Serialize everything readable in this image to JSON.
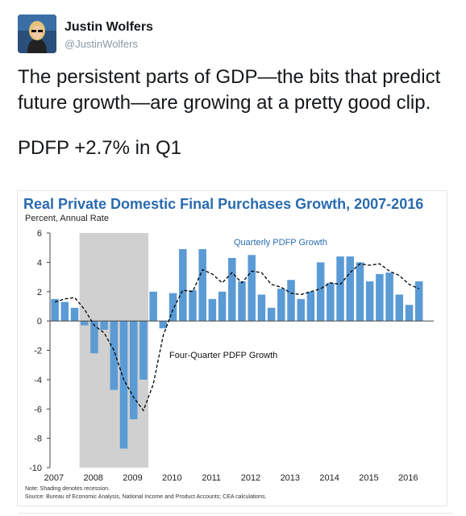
{
  "tweet": {
    "author_name": "Justin Wolfers",
    "author_handle": "@JustinWolfers",
    "avatar_icon": "user-avatar-photo",
    "text_line1": "The persistent parts of GDP—the bits that predict future growth—are growing at a pretty good clip.",
    "text_line2": "PDFP +2.7% in Q1"
  },
  "chart_data": {
    "type": "bar",
    "title": "Real Private Domestic Final Purchases Growth, 2007-2016",
    "subtitle": "Percent, Annual Rate",
    "ylim": [
      -10,
      6
    ],
    "yticks": [
      6,
      4,
      2,
      0,
      -2,
      -4,
      -6,
      -8,
      -10
    ],
    "xticks": [
      "2007",
      "2008",
      "2009",
      "2010",
      "2011",
      "2012",
      "2013",
      "2014",
      "2015",
      "2016"
    ],
    "x_start": 2007.0,
    "x_end": 2016.75,
    "bar_color": "#5b9bd5",
    "line_color": "#000000",
    "shade_color": "#d0d0d0",
    "recession": {
      "start": 2007.75,
      "end": 2009.5
    },
    "series": [
      {
        "name": "Quarterly PDFP Growth",
        "kind": "bar",
        "values": [
          1.5,
          1.3,
          0.9,
          -0.3,
          -2.2,
          -0.6,
          -4.7,
          -8.7,
          -6.7,
          -4.0,
          2.0,
          -0.5,
          1.9,
          4.9,
          2.1,
          4.9,
          1.5,
          2.0,
          4.3,
          2.7,
          4.5,
          1.8,
          0.9,
          2.2,
          2.8,
          1.5,
          2.0,
          4.0,
          2.6,
          4.4,
          4.4,
          4.0,
          2.7,
          3.2,
          3.3,
          1.8,
          1.1,
          2.7
        ]
      },
      {
        "name": "Four-Quarter PDFP Growth",
        "kind": "line",
        "values": [
          1.3,
          1.5,
          1.6,
          0.8,
          -0.3,
          -0.8,
          -2.0,
          -4.0,
          -5.2,
          -6.1,
          -4.3,
          -1.0,
          0.8,
          2.1,
          2.0,
          3.5,
          3.2,
          2.6,
          3.3,
          2.6,
          3.4,
          3.3,
          2.5,
          2.3,
          1.9,
          1.8,
          2.0,
          2.2,
          2.6,
          2.5,
          3.3,
          3.9,
          3.8,
          3.9,
          3.4,
          3.1,
          2.5,
          2.2
        ]
      }
    ],
    "annotations": {
      "quarterly_label": "Quarterly PDFP Growth",
      "four_quarter_label": "Four-Quarter PDFP Growth"
    },
    "note": "Note: Shading denotes recession.",
    "source": "Source: Bureau of Economic Analysis, National Income and Product Accounts; CEA calculations."
  }
}
